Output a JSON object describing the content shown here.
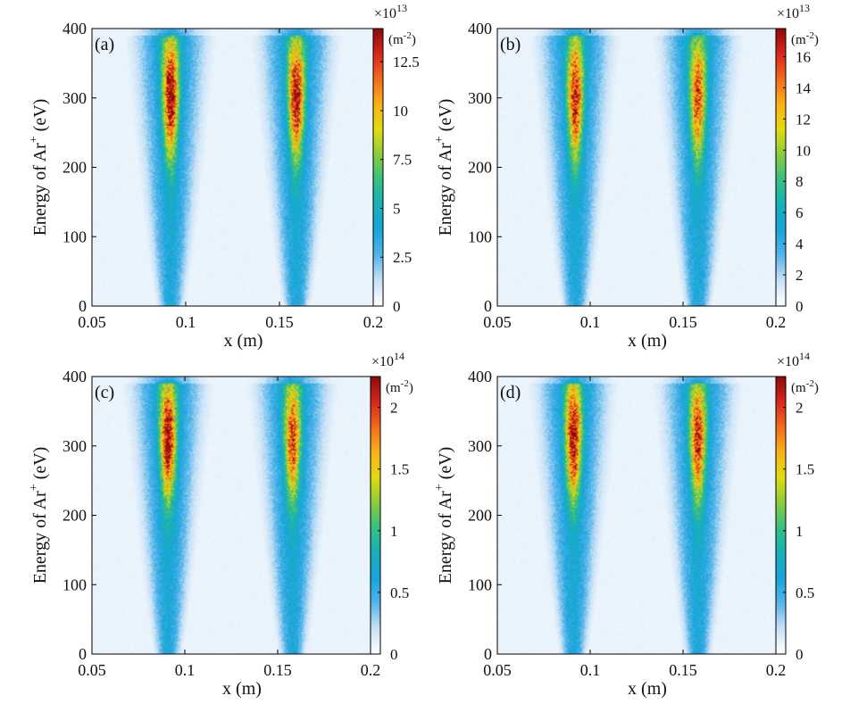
{
  "figure": {
    "panels": [
      {
        "label": "(a)",
        "ylabel_base": "Energy of Ar",
        "ylabel_sup": "+",
        "ylabel_unit": " (eV)",
        "xlabel": "x (m)",
        "colorbar_exponent_base": "×10",
        "colorbar_exponent_power": "13",
        "colorbar_unit": "(m",
        "colorbar_unit_power": "-2",
        "colorbar_unit_close": ")"
      },
      {
        "label": "(b)",
        "ylabel_base": "Energy of Ar",
        "ylabel_sup": "+",
        "ylabel_unit": " (eV)",
        "xlabel": "x (m)",
        "colorbar_exponent_base": "×10",
        "colorbar_exponent_power": "13",
        "colorbar_unit": "(m",
        "colorbar_unit_power": "-2",
        "colorbar_unit_close": ")"
      },
      {
        "label": "(c)",
        "ylabel_base": "Energy of Ar",
        "ylabel_sup": "+",
        "ylabel_unit": " (eV)",
        "xlabel": "x (m)",
        "colorbar_exponent_base": "×10",
        "colorbar_exponent_power": "14",
        "colorbar_unit": "(m",
        "colorbar_unit_power": "-2",
        "colorbar_unit_close": ")"
      },
      {
        "label": "(d)",
        "ylabel_base": "Energy of Ar",
        "ylabel_sup": "+",
        "ylabel_unit": " (eV)",
        "xlabel": "x (m)",
        "colorbar_exponent_base": "×10",
        "colorbar_exponent_power": "14",
        "colorbar_unit": "(m",
        "colorbar_unit_power": "-2",
        "colorbar_unit_close": ")"
      }
    ]
  },
  "chart_data": [
    {
      "type": "heatmap",
      "panel": "(a)",
      "xlim": [
        0.05,
        0.2
      ],
      "ylim": [
        0,
        400
      ],
      "xticks": [
        "0.05",
        "0.1",
        "0.15",
        "0.2"
      ],
      "xtick_values": [
        0.05,
        0.1,
        0.15,
        0.2
      ],
      "yticks": [
        "0",
        "100",
        "200",
        "300",
        "400"
      ],
      "ytick_values": [
        0,
        100,
        200,
        300,
        400
      ],
      "colorbar_ticks": [
        "0",
        "2.5",
        "5",
        "7.5",
        "10",
        "12.5"
      ],
      "colorbar_tick_values": [
        0,
        2.5,
        5,
        7.5,
        10,
        12.5
      ],
      "colorbar_range": [
        0,
        14.2
      ],
      "peaks": [
        {
          "x_center": 0.092,
          "peak_energy": 300,
          "intensity": 1.0
        },
        {
          "x_center": 0.159,
          "peak_energy": 300,
          "intensity": 0.97
        }
      ]
    },
    {
      "type": "heatmap",
      "panel": "(b)",
      "xlim": [
        0.05,
        0.2
      ],
      "ylim": [
        0,
        400
      ],
      "xticks": [
        "0.05",
        "0.1",
        "0.15",
        "0.2"
      ],
      "xtick_values": [
        0.05,
        0.1,
        0.15,
        0.2
      ],
      "yticks": [
        "0",
        "100",
        "200",
        "300",
        "400"
      ],
      "ytick_values": [
        0,
        100,
        200,
        300,
        400
      ],
      "colorbar_ticks": [
        "0",
        "2",
        "4",
        "6",
        "8",
        "10",
        "12",
        "14",
        "16"
      ],
      "colorbar_tick_values": [
        0,
        2,
        4,
        6,
        8,
        10,
        12,
        14,
        16
      ],
      "colorbar_range": [
        0,
        17.8
      ],
      "peaks": [
        {
          "x_center": 0.092,
          "peak_energy": 300,
          "intensity": 0.92
        },
        {
          "x_center": 0.158,
          "peak_energy": 300,
          "intensity": 0.8
        }
      ]
    },
    {
      "type": "heatmap",
      "panel": "(c)",
      "xlim": [
        0.05,
        0.2
      ],
      "ylim": [
        0,
        400
      ],
      "xticks": [
        "0.05",
        "0.1",
        "0.15",
        "0.2"
      ],
      "xtick_values": [
        0.05,
        0.1,
        0.15,
        0.2
      ],
      "yticks": [
        "0",
        "100",
        "200",
        "300",
        "400"
      ],
      "ytick_values": [
        0,
        100,
        200,
        300,
        400
      ],
      "colorbar_ticks": [
        "0",
        "0.5",
        "1",
        "1.5",
        "2"
      ],
      "colorbar_tick_values": [
        0,
        0.5,
        1,
        1.5,
        2
      ],
      "colorbar_range": [
        0,
        2.25
      ],
      "peaks": [
        {
          "x_center": 0.091,
          "peak_energy": 310,
          "intensity": 0.98
        },
        {
          "x_center": 0.158,
          "peak_energy": 310,
          "intensity": 0.8
        }
      ]
    },
    {
      "type": "heatmap",
      "panel": "(d)",
      "xlim": [
        0.05,
        0.2
      ],
      "ylim": [
        0,
        400
      ],
      "xticks": [
        "0.05",
        "0.1",
        "0.15",
        "0.2"
      ],
      "xtick_values": [
        0.05,
        0.1,
        0.15,
        0.2
      ],
      "yticks": [
        "0",
        "100",
        "200",
        "300",
        "400"
      ],
      "ytick_values": [
        0,
        100,
        200,
        300,
        400
      ],
      "colorbar_ticks": [
        "0",
        "0.5",
        "1",
        "1.5",
        "2"
      ],
      "colorbar_tick_values": [
        0,
        0.5,
        1,
        1.5,
        2
      ],
      "colorbar_range": [
        0,
        2.25
      ],
      "peaks": [
        {
          "x_center": 0.091,
          "peak_energy": 310,
          "intensity": 0.98
        },
        {
          "x_center": 0.158,
          "peak_energy": 310,
          "intensity": 0.85
        }
      ]
    }
  ],
  "colormap": [
    "#ffffff",
    "#c9e2f7",
    "#55b5ea",
    "#19a4dc",
    "#17b0b9",
    "#35c083",
    "#8bcc3c",
    "#e1dc12",
    "#fbb218",
    "#f36d1d",
    "#d8281d",
    "#8e0b0b"
  ]
}
